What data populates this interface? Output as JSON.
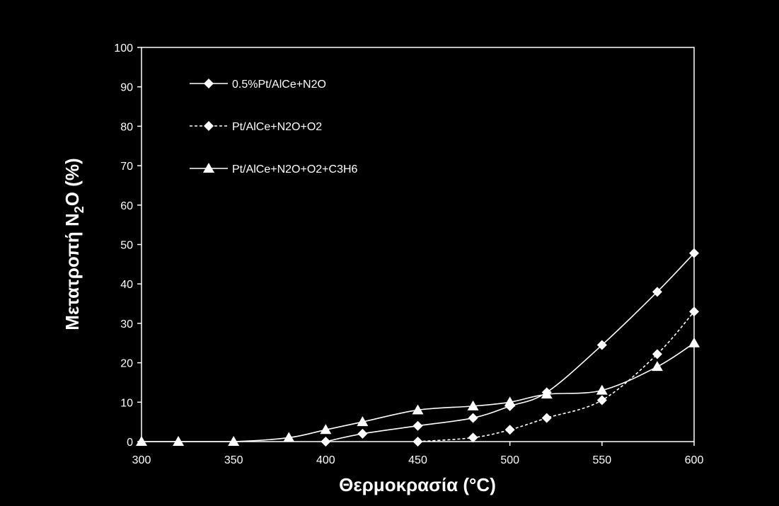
{
  "chart_data": {
    "type": "line",
    "xlabel": "Θερμοκρασία (°C)",
    "ylabel_parts": [
      "Μετατροπή N",
      "2",
      "O (%)"
    ],
    "xlim": [
      300,
      600
    ],
    "ylim": [
      0,
      100
    ],
    "xticks": [
      300,
      350,
      400,
      450,
      500,
      550,
      600
    ],
    "yticks": [
      0,
      10,
      20,
      30,
      40,
      50,
      60,
      70,
      80,
      90,
      100
    ],
    "grid": false,
    "legend_position": "top-left",
    "colors": {
      "background": "#000000",
      "foreground": "#ffffff"
    },
    "series": [
      {
        "name": "0.5%Pt/AlCe+N2O",
        "marker": "diamond",
        "line": "solid",
        "x": [
          400,
          420,
          450,
          480,
          500,
          520,
          550,
          580,
          600
        ],
        "y": [
          0,
          2,
          4,
          6,
          9,
          12.5,
          24.5,
          38,
          47.8
        ]
      },
      {
        "name": "Pt/AlCe+N2O+O2",
        "marker": "diamond",
        "line": "dashed",
        "x": [
          450,
          480,
          500,
          520,
          550,
          580,
          600
        ],
        "y": [
          0,
          1,
          3,
          6,
          10.5,
          22.2,
          33
        ]
      },
      {
        "name": "Pt/AlCe+N2O+O2+C3H6",
        "marker": "triangle",
        "line": "solid",
        "x": [
          300,
          320,
          350,
          380,
          400,
          420,
          450,
          480,
          500,
          520,
          550,
          580,
          600
        ],
        "y": [
          0,
          0,
          0,
          1,
          3,
          5,
          8,
          9,
          10,
          12,
          13,
          19,
          25
        ]
      }
    ]
  }
}
